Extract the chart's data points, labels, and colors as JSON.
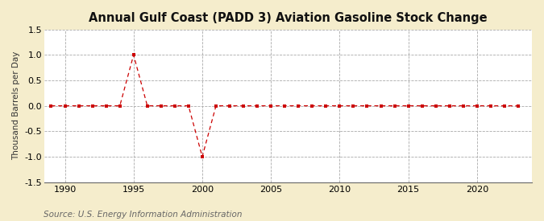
{
  "title": "Annual Gulf Coast (PADD 3) Aviation Gasoline Stock Change",
  "ylabel": "Thousand Barrels per Day",
  "source": "Source: U.S. Energy Information Administration",
  "figure_bg_color": "#f5edcc",
  "axes_bg_color": "#ffffff",
  "line_color": "#cc0000",
  "marker_color": "#cc0000",
  "grid_color": "#aaaaaa",
  "ylim": [
    -1.5,
    1.5
  ],
  "yticks": [
    -1.5,
    -1.0,
    -0.5,
    0.0,
    0.5,
    1.0,
    1.5
  ],
  "xticks": [
    1990,
    1995,
    2000,
    2005,
    2010,
    2015,
    2020
  ],
  "xlim": [
    1988.5,
    2024.0
  ],
  "years": [
    1989,
    1990,
    1991,
    1992,
    1993,
    1994,
    1995,
    1996,
    1997,
    1998,
    1999,
    2000,
    2001,
    2002,
    2003,
    2004,
    2005,
    2006,
    2007,
    2008,
    2009,
    2010,
    2011,
    2012,
    2013,
    2014,
    2015,
    2016,
    2017,
    2018,
    2019,
    2020,
    2021,
    2022,
    2023
  ],
  "values": [
    0.0,
    0.0,
    0.0,
    0.0,
    0.0,
    0.0,
    1.0,
    0.0,
    0.0,
    0.0,
    0.0,
    -1.0,
    0.0,
    0.0,
    0.0,
    0.0,
    0.0,
    0.0,
    0.0,
    0.0,
    0.0,
    0.0,
    0.0,
    0.0,
    0.0,
    0.0,
    0.0,
    0.0,
    0.0,
    0.0,
    0.0,
    0.0,
    0.0,
    0.0,
    0.0
  ],
  "title_fontsize": 10.5,
  "label_fontsize": 7.5,
  "tick_fontsize": 8,
  "source_fontsize": 7.5
}
